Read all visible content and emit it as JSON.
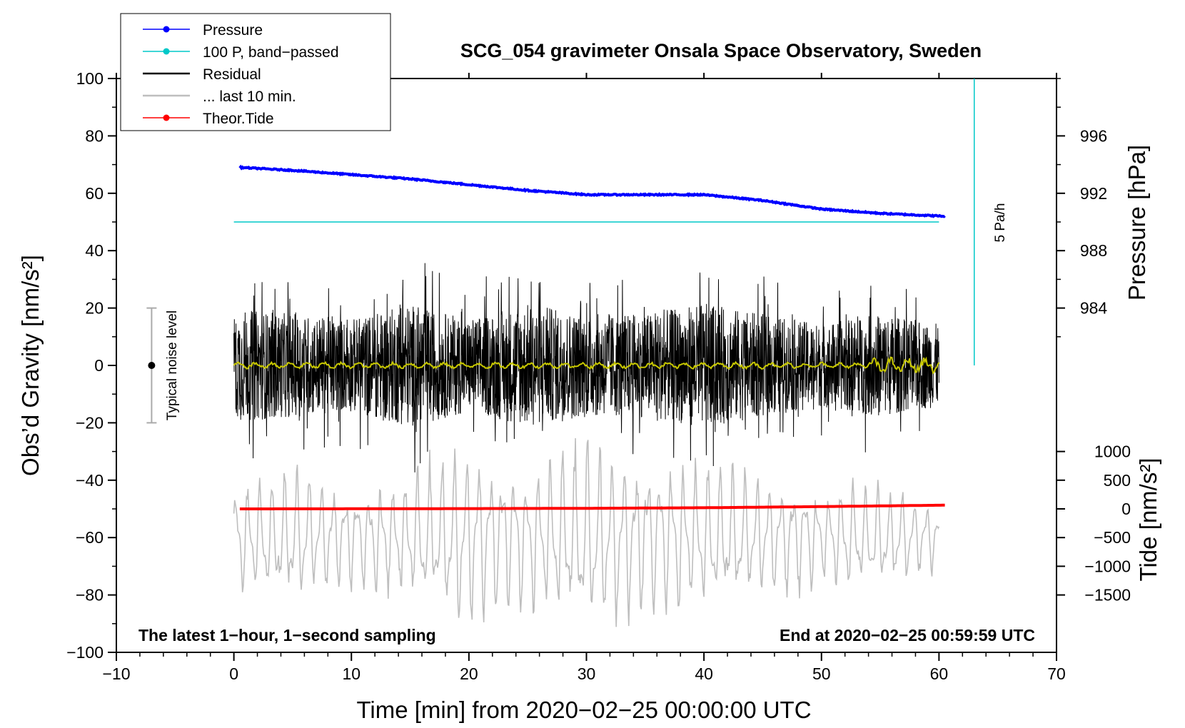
{
  "chart_data": {
    "type": "line",
    "title": "SCG_054 gravimeter Onsala Space Observatory, Sweden",
    "xlabel": "Time [min] from 2020−02−25 00:00:00 UTC",
    "ylabel_left": "Obs’d Gravity [nm/s²]",
    "ylabel_right_top": "Pressure [hPa]",
    "ylabel_right_bottom": "Tide [nm/s²]",
    "xlim": [
      -10,
      70
    ],
    "ylim": [
      -100,
      100
    ],
    "x_ticks": [
      -10,
      0,
      10,
      20,
      30,
      40,
      50,
      60,
      70
    ],
    "x_tick_labels": [
      "−10",
      "0",
      "10",
      "20",
      "30",
      "40",
      "50",
      "60",
      "70"
    ],
    "y_ticks": [
      -100,
      -80,
      -60,
      -40,
      -20,
      0,
      20,
      40,
      60,
      80,
      100
    ],
    "y_tick_labels": [
      "−100",
      "−80",
      "−60",
      "−40",
      "−20",
      "0",
      "20",
      "40",
      "60",
      "80",
      "100"
    ],
    "pressure_axis": {
      "ticks": [
        984,
        988,
        992,
        996
      ],
      "tick_labels": [
        "984",
        "988",
        "992",
        "996"
      ],
      "anchor_value": 992,
      "anchor_gravity": 60,
      "scale_per_hpa": 5
    },
    "tide_axis": {
      "ticks": [
        -1500,
        -1000,
        -500,
        0,
        500,
        1000
      ],
      "tick_labels": [
        "−1500",
        "−1000",
        "−500",
        "0",
        "500",
        "1000"
      ],
      "anchor_value": 0,
      "anchor_gravity": -50,
      "scale_per_unit": 0.02
    },
    "legend": {
      "position": "top-left",
      "entries": [
        {
          "label": "Pressure",
          "color": "#0000ff",
          "marker": true
        },
        {
          "label": "100 P, band−passed",
          "color": "#00c8c8",
          "marker": true
        },
        {
          "label": "Residual",
          "color": "#000000",
          "marker": false
        },
        {
          "label": "... last 10 min.",
          "color": "#bebebe",
          "marker": false
        },
        {
          "label": "Theor.Tide",
          "color": "#ff0000",
          "marker": true
        }
      ]
    },
    "series": [
      {
        "name": "Pressure",
        "color": "#0000ff",
        "axis": "pressure",
        "x": [
          0.5,
          5,
          10,
          15,
          20,
          25,
          30,
          35,
          40,
          45,
          50,
          55,
          60.5
        ],
        "values": [
          993.8,
          993.6,
          993.3,
          993.0,
          992.6,
          992.2,
          991.9,
          991.9,
          991.9,
          991.5,
          990.9,
          990.6,
          990.4
        ]
      },
      {
        "name": "100 P, band−passed",
        "color": "#00c8c8",
        "axis": "gravity",
        "x": [
          0,
          60
        ],
        "values": [
          50,
          50
        ]
      },
      {
        "name": "Theor.Tide",
        "color": "#ff0000",
        "axis": "tide",
        "x": [
          0.5,
          10,
          20,
          30,
          40,
          50,
          60.5
        ],
        "values": [
          0,
          2,
          5,
          10,
          20,
          40,
          65
        ]
      },
      {
        "name": "Residual",
        "color": "#000000",
        "axis": "gravity",
        "x_range": [
          0,
          60
        ],
        "envelope_x": [
          0,
          5,
          10,
          15,
          20,
          25,
          30,
          35,
          40,
          45,
          50,
          55,
          60
        ],
        "envelope_amplitude": [
          22,
          20,
          18,
          24,
          18,
          24,
          20,
          20,
          24,
          20,
          16,
          20,
          16
        ]
      },
      {
        "name": "... last 10 min.",
        "color": "#bebebe",
        "axis": "gravity",
        "x_range": [
          0,
          60
        ],
        "center": -60,
        "envelope_x": [
          0,
          5,
          10,
          15,
          20,
          25,
          30,
          35,
          40,
          45,
          50,
          55,
          60
        ],
        "envelope_amplitude": [
          18,
          22,
          16,
          20,
          30,
          22,
          30,
          26,
          24,
          20,
          16,
          18,
          10
        ]
      },
      {
        "name": "filtered",
        "color": "#c8c800",
        "axis": "gravity",
        "x_range": [
          0,
          60
        ],
        "center": 0,
        "amplitude": 1.2
      }
    ],
    "noise_bar": {
      "label": "Typical noise level",
      "x": -7,
      "center": 0,
      "half_range": 20
    },
    "rate_bar": {
      "label": "5 Pa/h",
      "x": 63,
      "y_from": 0,
      "y_to": 100,
      "color": "#00c8c8"
    },
    "annotations": {
      "bottom_left": "The latest 1−hour, 1−second sampling",
      "bottom_right": "End at 2020−02−25 00:59:59 UTC"
    }
  }
}
